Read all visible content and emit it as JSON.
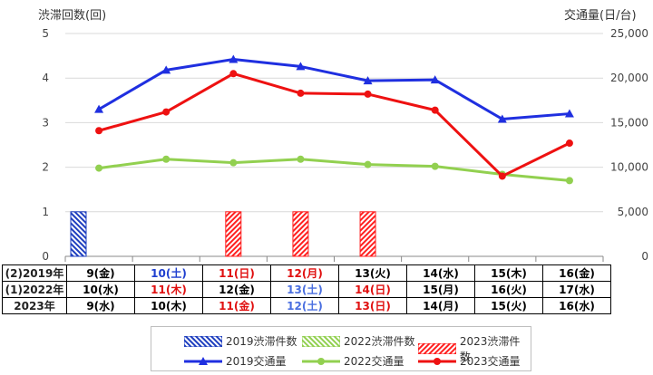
{
  "chart_data": {
    "type": "bar+line",
    "left_axis_title": "渋滞回数(回)",
    "right_axis_title": "交通量(日/台)",
    "left_ylim": [
      0,
      5
    ],
    "left_ticks": [
      "0",
      "1",
      "2",
      "3",
      "4",
      "5"
    ],
    "right_ylim": [
      0,
      25000
    ],
    "right_ticks": [
      "0",
      "5,000",
      "10,000",
      "15,000",
      "20,000",
      "25,000"
    ],
    "grid": true,
    "categories_count": 8,
    "bar_series": [
      {
        "name": "2019渋滞件数",
        "color": "#1f3fbf",
        "pattern": "diag-blue",
        "values": [
          1,
          0,
          0,
          0,
          0,
          0,
          0,
          0
        ]
      },
      {
        "name": "2022渋滞件数",
        "color": "#92d050",
        "pattern": "diag-green",
        "values": [
          0,
          0,
          0,
          0,
          0,
          0,
          0,
          0
        ]
      },
      {
        "name": "2023渋滞件数",
        "color": "#ff2020",
        "pattern": "diag-red",
        "values": [
          0,
          0,
          1,
          1,
          1,
          0,
          0,
          0
        ]
      }
    ],
    "line_series": [
      {
        "name": "2019交通量",
        "color": "#1f2fe0",
        "marker": "triangle",
        "values": [
          16500,
          20900,
          22100,
          21300,
          19700,
          19800,
          15400,
          16000
        ]
      },
      {
        "name": "2022交通量",
        "color": "#92d050",
        "marker": "circle",
        "values": [
          9900,
          10900,
          10500,
          10900,
          10300,
          10100,
          9200,
          8500
        ]
      },
      {
        "name": "2023交通量",
        "color": "#ee1111",
        "marker": "circle",
        "values": [
          14100,
          16200,
          20500,
          18300,
          18200,
          16400,
          9000,
          12700
        ]
      }
    ],
    "date_rows": [
      {
        "label": "(2)2019年",
        "cells": [
          {
            "text": "9(金)",
            "color": "#000000"
          },
          {
            "text": "10(土)",
            "color": "#1f3fcf"
          },
          {
            "text": "11(日)",
            "color": "#e01010"
          },
          {
            "text": "12(月)",
            "color": "#e01010"
          },
          {
            "text": "13(火)",
            "color": "#000000"
          },
          {
            "text": "14(水)",
            "color": "#000000"
          },
          {
            "text": "15(木)",
            "color": "#000000"
          },
          {
            "text": "16(金)",
            "color": "#000000"
          }
        ]
      },
      {
        "label": "(1)2022年",
        "cells": [
          {
            "text": "10(水)",
            "color": "#000000"
          },
          {
            "text": "11(木)",
            "color": "#e01010"
          },
          {
            "text": "12(金)",
            "color": "#000000"
          },
          {
            "text": "13(土)",
            "color": "#4a6fe0"
          },
          {
            "text": "14(日)",
            "color": "#e01010"
          },
          {
            "text": "15(月)",
            "color": "#000000"
          },
          {
            "text": "16(火)",
            "color": "#000000"
          },
          {
            "text": "17(水)",
            "color": "#000000"
          }
        ]
      },
      {
        "label": "2023年",
        "cells": [
          {
            "text": "9(水)",
            "color": "#000000"
          },
          {
            "text": "10(木)",
            "color": "#000000"
          },
          {
            "text": "11(金)",
            "color": "#e01010"
          },
          {
            "text": "12(土)",
            "color": "#4a6fe0"
          },
          {
            "text": "13(日)",
            "color": "#e01010"
          },
          {
            "text": "14(月)",
            "color": "#000000"
          },
          {
            "text": "15(火)",
            "color": "#000000"
          },
          {
            "text": "16(水)",
            "color": "#000000"
          }
        ]
      }
    ],
    "legend": {
      "placement": "bottom",
      "items": [
        "2019渋滞件数",
        "2022渋滞件数",
        "2023渋滞件数",
        "2019交通量",
        "2022交通量",
        "2023交通量"
      ]
    }
  }
}
